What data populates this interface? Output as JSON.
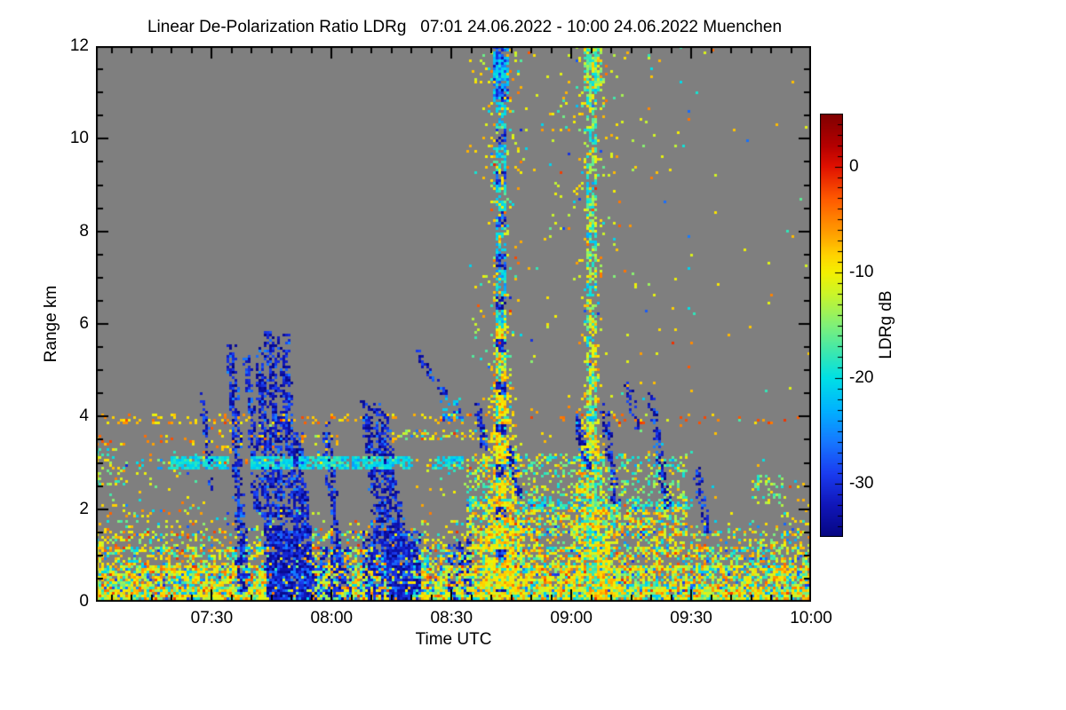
{
  "page": {
    "background": "#ffffff"
  },
  "chart_data": {
    "type": "heatmap",
    "title": "Linear De-Polarization Ratio LDRg   07:01 24.06.2022 - 10:00 24.06.2022 Muenchen",
    "instrument_quantity": "Linear De-Polarization Ratio LDRg",
    "time_start": "07:01",
    "time_end": "10:00",
    "date": "24.06.2022",
    "station": "Muenchen",
    "xlabel": "Time UTC",
    "ylabel": "Range km",
    "colorbar_label": "LDRg dB",
    "duration_min": 179,
    "ylim": [
      0,
      12
    ],
    "clim_top_dB": 5,
    "clim_bottom_dB": -35,
    "background_color": "#7f7f7f",
    "xticks": [
      {
        "t": 29,
        "label": "07:30"
      },
      {
        "t": 59,
        "label": "08:00"
      },
      {
        "t": 89,
        "label": "08:30"
      },
      {
        "t": 119,
        "label": "09:00"
      },
      {
        "t": 149,
        "label": "09:30"
      },
      {
        "t": 179,
        "label": "10:00"
      }
    ],
    "x_minor_step_min": 5,
    "yticks": [
      {
        "h": 0,
        "label": "0"
      },
      {
        "h": 2,
        "label": "2"
      },
      {
        "h": 4,
        "label": "4"
      },
      {
        "h": 6,
        "label": "6"
      },
      {
        "h": 8,
        "label": "8"
      },
      {
        "h": 10,
        "label": "10"
      },
      {
        "h": 12,
        "label": "12"
      }
    ],
    "y_minor_step_km": 0.5,
    "cticks": [
      {
        "v": 0,
        "label": "0"
      },
      {
        "v": -10,
        "label": "-10"
      },
      {
        "v": -20,
        "label": "-20"
      },
      {
        "v": -30,
        "label": "-30"
      }
    ],
    "c_minor_step_dB": 1,
    "colormap_stops": [
      [
        5,
        [
          127,
          0,
          0
        ]
      ],
      [
        2,
        [
          180,
          0,
          0
        ]
      ],
      [
        0,
        [
          224,
          16,
          0
        ]
      ],
      [
        -3,
        [
          255,
          88,
          0
        ]
      ],
      [
        -6,
        [
          255,
          152,
          0
        ]
      ],
      [
        -8.5,
        [
          255,
          213,
          0
        ]
      ],
      [
        -10,
        [
          244,
          240,
          0
        ]
      ],
      [
        -12,
        [
          204,
          245,
          40
        ]
      ],
      [
        -15,
        [
          128,
          240,
          120
        ]
      ],
      [
        -18,
        [
          48,
          230,
          185
        ]
      ],
      [
        -20,
        [
          0,
          224,
          230
        ]
      ],
      [
        -23,
        [
          0,
          178,
          255
        ]
      ],
      [
        -26,
        [
          22,
          120,
          255
        ]
      ],
      [
        -29,
        [
          26,
          60,
          240
        ]
      ],
      [
        -32,
        [
          16,
          22,
          185
        ]
      ],
      [
        -35,
        [
          6,
          6,
          130
        ]
      ]
    ],
    "palettes": {
      "surface": [
        [
          -7,
          -13,
          0.42
        ],
        [
          -13,
          -17,
          0.2
        ],
        [
          -17,
          -22,
          0.16
        ],
        [
          -4,
          -7,
          0.1
        ],
        [
          -1,
          -4,
          0.04
        ],
        [
          -23,
          -30,
          0.08
        ]
      ],
      "speck": [
        [
          -7,
          -13,
          0.55
        ],
        [
          -17,
          -22,
          0.16
        ],
        [
          -4,
          -8,
          0.12
        ],
        [
          -13,
          -17,
          0.09
        ],
        [
          -1,
          -4,
          0.04
        ],
        [
          -25,
          -31,
          0.04
        ]
      ],
      "warmline": [
        [
          -5,
          -11,
          0.8
        ],
        [
          -2,
          -5,
          0.2
        ]
      ],
      "redline": [
        [
          -1,
          -5,
          0.65
        ],
        [
          -5,
          -9,
          0.35
        ]
      ],
      "cyanband": [
        [
          -18,
          -22,
          0.72
        ],
        [
          -22,
          -25,
          0.18
        ],
        [
          -15,
          -18,
          0.1
        ]
      ],
      "blue": [
        [
          -29,
          -35,
          0.78
        ],
        [
          -25,
          -29,
          0.22
        ]
      ],
      "ycore": [
        [
          -7,
          -12,
          0.7
        ],
        [
          -4,
          -7,
          0.12
        ],
        [
          -16,
          -20,
          0.18
        ]
      ],
      "cgreen": [
        [
          -15,
          -20,
          0.5
        ],
        [
          -11,
          -15,
          0.28
        ],
        [
          -7,
          -11,
          0.22
        ]
      ],
      "cyanblue": [
        [
          -19,
          -24,
          0.5
        ],
        [
          -25,
          -32,
          0.5
        ]
      ]
    },
    "features": [
      {
        "type": "noise",
        "t0": 0,
        "t1": 179,
        "pal": "surface",
        "layers": [
          [
            0,
            0.3,
            0.93
          ],
          [
            0.3,
            0.75,
            0.78
          ],
          [
            0.75,
            1.15,
            0.5
          ],
          [
            1.15,
            1.5,
            0.28
          ],
          [
            1.5,
            1.75,
            0.1
          ]
        ]
      },
      {
        "type": "wash",
        "t0": 93,
        "t1": 147,
        "h0": 1.5,
        "h1": 2.1,
        "p": 0.5,
        "pal": "surface"
      },
      {
        "type": "wash",
        "t0": 93,
        "t1": 147,
        "h0": 2.1,
        "h1": 3.2,
        "p": 0.28,
        "pal": "cgreen"
      },
      {
        "type": "line",
        "h": 3.95,
        "t0": 0,
        "t1": 93,
        "p": 0.2,
        "pal": "warmline"
      },
      {
        "type": "line",
        "h": 3.95,
        "t0": 93,
        "t1": 179,
        "p": 0.07,
        "pal": "redline"
      },
      {
        "type": "line",
        "h": 3.45,
        "t0": 0,
        "t1": 74,
        "p": 0.12,
        "pal": "warmline"
      },
      {
        "type": "line",
        "h": 3.6,
        "t0": 72,
        "t1": 96,
        "p": 0.3,
        "pal": "speck"
      },
      {
        "type": "line",
        "h": 3.02,
        "t0": 8,
        "t1": 93,
        "p": 0.15,
        "pal": "warmline"
      },
      {
        "type": "line",
        "h": 2.1,
        "t0": 93,
        "t1": 148,
        "p": 0.3,
        "pal": "cyanband"
      },
      {
        "type": "line",
        "h": 3.0,
        "t0": 96,
        "t1": 145,
        "p": 0.18,
        "pal": "cyanband"
      },
      {
        "type": "line",
        "h": 1.85,
        "t0": 5,
        "t1": 60,
        "p": 0.06,
        "pal": "speck"
      },
      {
        "type": "wash",
        "t0": 0,
        "t1": 27,
        "h0": 1.5,
        "h1": 3.3,
        "p": 0.05,
        "pal": "speck"
      },
      {
        "type": "wash",
        "t0": 0,
        "t1": 7,
        "h0": 2.6,
        "h1": 3.3,
        "p": 0.25,
        "pal": "cgreen"
      },
      {
        "type": "wash",
        "t0": 27,
        "t1": 34,
        "h0": 3.3,
        "h1": 4.0,
        "p": 0.1,
        "pal": "warmline"
      },
      {
        "type": "wash",
        "t0": 39,
        "t1": 46,
        "h0": 3.1,
        "h1": 3.9,
        "p": 0.15,
        "pal": "speck"
      },
      {
        "type": "wash",
        "t0": 55,
        "t1": 60,
        "h0": 3.0,
        "h1": 3.6,
        "p": 0.1,
        "pal": "speck"
      },
      {
        "type": "wash",
        "t0": 80,
        "t1": 93,
        "h0": 1.5,
        "h1": 3.0,
        "p": 0.04,
        "pal": "speck"
      },
      {
        "type": "gauss",
        "t0": 92,
        "t1": 148,
        "h0": 3.2,
        "h1": 12,
        "base": 0.013,
        "pal": "speck",
        "blobs": [
          [
            100.8,
            0.22,
            0.6,
            0.18
          ],
          [
            123.6,
            0.16,
            0.5,
            0.2
          ],
          [
            100.8,
            0.06,
            2.5,
            0.3
          ],
          [
            123.6,
            0.05,
            2.2,
            0.35
          ]
        ]
      },
      {
        "type": "wash",
        "t0": 148,
        "t1": 179,
        "h0": 1.7,
        "h1": 12,
        "p": 0.004,
        "pal": "speck"
      },
      {
        "type": "wash",
        "t0": 164,
        "t1": 171,
        "h0": 2.2,
        "h1": 2.75,
        "p": 0.3,
        "pal": "cgreen"
      },
      {
        "type": "wash",
        "t0": 171,
        "t1": 179,
        "h0": 1.7,
        "h1": 2.6,
        "p": 0.08,
        "pal": "speck"
      },
      {
        "type": "wash",
        "t0": 43,
        "t1": 53,
        "h0": 0,
        "h1": 1.6,
        "p": 0.5,
        "pal": "blue"
      },
      {
        "type": "wash",
        "t0": 56,
        "t1": 63,
        "h0": 0,
        "h1": 1.2,
        "p": 0.35,
        "pal": "blue"
      },
      {
        "type": "wash",
        "t0": 67,
        "t1": 80,
        "h0": 0,
        "h1": 1.5,
        "p": 0.45,
        "pal": "blue"
      },
      {
        "type": "wash",
        "t0": 88,
        "t1": 93,
        "h0": 0,
        "h1": 1.4,
        "p": 0.3,
        "pal": "blue"
      },
      {
        "type": "cone",
        "t": 100.8,
        "htop": 6.2,
        "hwTop": 1.1,
        "hw0": 6.4,
        "p0": 0.8,
        "ps": 0.065,
        "pal": "ycore"
      },
      {
        "type": "cone",
        "t": 123.6,
        "htop": 5.6,
        "hwTop": 0.9,
        "hw0": 6.0,
        "p0": 0.75,
        "ps": 0.07,
        "pal": "ycore"
      },
      {
        "type": "column",
        "t": 100.8,
        "h0": 6,
        "h1": 12,
        "hw": 0.65,
        "p": 0.6,
        "pal": "cyanband",
        "dash": [
          0.9,
          0.35,
          "blue"
        ]
      },
      {
        "type": "column",
        "t": 100.8,
        "h0": 0.3,
        "h1": 6,
        "hw": 0.6,
        "p": 0.7,
        "pal": "ycore",
        "dash": [
          0.9,
          0.3,
          "blue"
        ]
      },
      {
        "type": "column",
        "t": 123.6,
        "h0": 5,
        "h1": 12,
        "hw": 0.55,
        "p": 0.55,
        "pal": "cgreen",
        "dash": [
          1.1,
          0.25,
          "cyanband"
        ]
      },
      {
        "type": "column",
        "t": 123.6,
        "h0": 0.3,
        "h1": 5,
        "hw": 0.5,
        "p": 0.5,
        "pal": "cgreen",
        "dash": [
          1.3,
          0.2,
          "cyanband"
        ]
      },
      {
        "type": "wash",
        "t0": 99.3,
        "t1": 102.3,
        "h0": 10.9,
        "h1": 12,
        "p": 0.7,
        "pal": "cyanblue"
      },
      {
        "type": "wash",
        "t0": 122,
        "t1": 125.3,
        "h0": 11.1,
        "h1": 12,
        "p": 0.65,
        "pal": "cgreen"
      },
      {
        "type": "streak",
        "t0": 26,
        "h0": 4.6,
        "t1": 28.5,
        "h1": 2.45,
        "w": 0.6,
        "p": 0.55,
        "pal": "blue"
      },
      {
        "type": "streak",
        "t0": 33.5,
        "h0": 5.55,
        "t1": 36.5,
        "h1": 0.3,
        "w": 1.1,
        "p": 0.8,
        "flare": 0.8,
        "pal": "blue"
      },
      {
        "type": "streak",
        "t0": 37.5,
        "h0": 5.35,
        "t1": 40,
        "h1": 2.0,
        "w": 0.9,
        "p": 0.7,
        "pal": "blue"
      },
      {
        "type": "streak",
        "t0": 40.5,
        "h0": 5.5,
        "t1": 44,
        "h1": 0.2,
        "w": 1.3,
        "p": 0.8,
        "flare": 0.7,
        "pal": "blue"
      },
      {
        "type": "streak",
        "t0": 43,
        "h0": 5.85,
        "t1": 47,
        "h1": 0,
        "w": 1.5,
        "p": 0.85,
        "flare": 0.7,
        "pal": "blue"
      },
      {
        "type": "streak",
        "t0": 46.5,
        "h0": 5.8,
        "t1": 51.5,
        "h1": 0,
        "w": 1.7,
        "p": 0.85,
        "flare": 0.6,
        "cv": 1.3,
        "pal": "blue"
      },
      {
        "type": "streak",
        "t0": 50,
        "h0": 3.7,
        "t1": 54.5,
        "h1": 0,
        "w": 1.4,
        "p": 0.8,
        "cv": 1.2,
        "pal": "blue"
      },
      {
        "type": "streak",
        "t0": 57,
        "h0": 3.9,
        "t1": 61,
        "h1": 0.3,
        "w": 1.3,
        "p": 0.75,
        "pal": "blue"
      },
      {
        "type": "streak",
        "t0": 66.8,
        "h0": 4.35,
        "t1": 70,
        "h1": 1.2,
        "w": 0.5,
        "p": 0.5,
        "pal": "blue"
      },
      {
        "type": "streak",
        "t0": 67.5,
        "h0": 4.25,
        "t1": 75,
        "h1": 0.1,
        "w": 1.3,
        "p": 0.8,
        "cv": 1.4,
        "flare": 0.5,
        "pal": "blue"
      },
      {
        "type": "streak",
        "t0": 69.8,
        "h0": 4.3,
        "t1": 77,
        "h1": 0.1,
        "w": 1.3,
        "p": 0.8,
        "cv": 1.4,
        "flare": 0.5,
        "pal": "blue"
      },
      {
        "type": "streak",
        "t0": 71.8,
        "h0": 4.1,
        "t1": 79,
        "h1": 0.3,
        "w": 1.2,
        "p": 0.75,
        "cv": 1.4,
        "flare": 0.5,
        "pal": "blue"
      },
      {
        "type": "streak",
        "t0": 79.5,
        "h0": 5.45,
        "t1": 87,
        "h1": 4.45,
        "w": 0.7,
        "p": 0.75,
        "pal": "blue"
      },
      {
        "type": "wash",
        "t0": 86,
        "t1": 90.5,
        "h0": 4.0,
        "h1": 4.4,
        "p": 0.3,
        "pal": "cyanblue"
      },
      {
        "type": "streak",
        "t0": 95,
        "h0": 4.3,
        "t1": 97,
        "h1": 3.35,
        "w": 0.5,
        "p": 0.6,
        "pal": "blue"
      },
      {
        "type": "streak",
        "t0": 103,
        "h0": 3.4,
        "t1": 105.5,
        "h1": 2.3,
        "w": 0.7,
        "p": 0.7,
        "pal": "blue"
      },
      {
        "type": "streak",
        "t0": 119.5,
        "h0": 4.05,
        "t1": 123,
        "h1": 2.9,
        "w": 0.8,
        "p": 0.7,
        "cv": 1.3,
        "pal": "blue"
      },
      {
        "type": "streak",
        "t0": 126.5,
        "h0": 4.3,
        "t1": 129.5,
        "h1": 2.2,
        "w": 0.8,
        "p": 0.7,
        "pal": "blue"
      },
      {
        "type": "streak",
        "t0": 132,
        "h0": 4.9,
        "t1": 135,
        "h1": 3.8,
        "w": 0.6,
        "p": 0.6,
        "pal": "blue"
      },
      {
        "type": "streak",
        "t0": 138.5,
        "h0": 4.55,
        "t1": 142.5,
        "h1": 2.05,
        "w": 0.9,
        "p": 0.7,
        "cv": 1.2,
        "pal": "blue"
      },
      {
        "type": "streak",
        "t0": 149.5,
        "h0": 3.05,
        "t1": 152.5,
        "h1": 1.5,
        "w": 0.8,
        "p": 0.7,
        "cv": 1.2,
        "pal": "blue"
      },
      {
        "type": "segline",
        "h": 2.95,
        "th": 0.18,
        "p": 0.8,
        "pal": "cyanband",
        "segs": [
          [
            19,
            32
          ],
          [
            39,
            48
          ],
          [
            51,
            62
          ],
          [
            64,
            78
          ],
          [
            84,
            91
          ]
        ]
      },
      {
        "type": "line",
        "h": 2.95,
        "t0": 10,
        "t1": 19,
        "p": 0.2,
        "pal": "cyanband"
      }
    ]
  }
}
